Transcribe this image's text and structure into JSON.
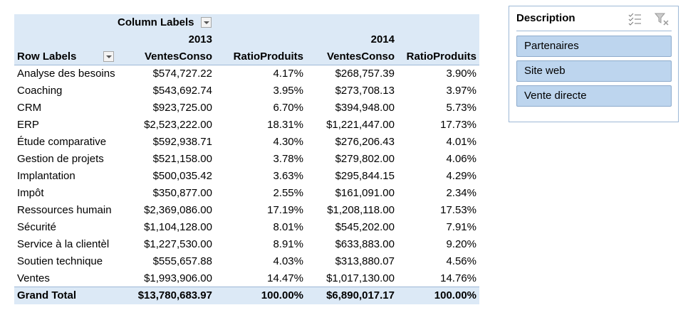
{
  "pivot": {
    "column_labels": "Column Labels",
    "row_labels": "Row Labels",
    "years": [
      "2013",
      "2014"
    ],
    "measures": [
      "VentesConso",
      "RatioProduits",
      "VentesConso",
      "RatioProduits"
    ],
    "rows": [
      [
        "Analyse des besoins",
        "$574,727.22",
        "4.17%",
        "$268,757.39",
        "3.90%"
      ],
      [
        "Coaching",
        "$543,692.74",
        "3.95%",
        "$273,708.13",
        "3.97%"
      ],
      [
        "CRM",
        "$923,725.00",
        "6.70%",
        "$394,948.00",
        "5.73%"
      ],
      [
        "ERP",
        "$2,523,222.00",
        "18.31%",
        "$1,221,447.00",
        "17.73%"
      ],
      [
        "Étude comparative",
        "$592,938.71",
        "4.30%",
        "$276,206.43",
        "4.01%"
      ],
      [
        "Gestion de projets",
        "$521,158.00",
        "3.78%",
        "$279,802.00",
        "4.06%"
      ],
      [
        "Implantation",
        "$500,035.42",
        "3.63%",
        "$295,844.15",
        "4.29%"
      ],
      [
        "Impôt",
        "$350,877.00",
        "2.55%",
        "$161,091.00",
        "2.34%"
      ],
      [
        "Ressources humain",
        "$2,369,086.00",
        "17.19%",
        "$1,208,118.00",
        "17.53%"
      ],
      [
        "Sécurité",
        "$1,104,128.00",
        "8.01%",
        "$545,202.00",
        "7.91%"
      ],
      [
        "Service à la clientèl",
        "$1,227,530.00",
        "8.91%",
        "$633,883.00",
        "9.20%"
      ],
      [
        "Soutien technique",
        "$555,657.88",
        "4.03%",
        "$313,880.07",
        "4.56%"
      ],
      [
        "Ventes",
        "$1,993,906.00",
        "14.47%",
        "$1,017,130.00",
        "14.76%"
      ]
    ],
    "grand_total": [
      "Grand Total",
      "$13,780,683.97",
      "100.00%",
      "$6,890,017.17",
      "100.00%"
    ]
  },
  "slicer": {
    "title": "Description",
    "items": [
      "Partenaires",
      "Site web",
      "Vente directe"
    ]
  }
}
